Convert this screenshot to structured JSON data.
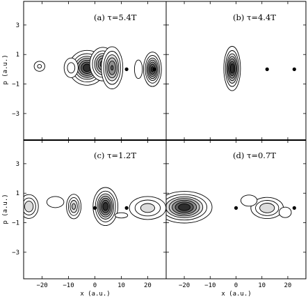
{
  "chart_data": {
    "type": "contour",
    "layout": "2x2 panels sharing axes",
    "xlabel": "x (a.u.)",
    "ylabel": "p (a.u.)",
    "xlim": [
      -27,
      27
    ],
    "ylim": [
      -4.8,
      4.6
    ],
    "xticks": [
      -20,
      -10,
      0,
      10,
      20
    ],
    "yticks": [
      -3,
      -1,
      1,
      3
    ],
    "panels": [
      {
        "id": "a",
        "label": "(a) τ=5.4T",
        "dots": [
          [
            12,
            0
          ],
          [
            22.5,
            0
          ]
        ],
        "blobs": [
          {
            "x": -3,
            "p": 0.1,
            "sx": 3.2,
            "sp": 0.55,
            "amp": 1.0
          },
          {
            "x": 3,
            "p": 0.35,
            "sx": 2.4,
            "sp": 0.55,
            "amp": 0.85
          },
          {
            "x": 6.5,
            "p": 0.1,
            "sx": 2.0,
            "sp": 0.7,
            "amp": 0.8
          },
          {
            "x": -9,
            "p": 0.1,
            "sx": 1.8,
            "sp": 0.45,
            "amp": 0.3
          },
          {
            "x": 21.8,
            "p": 0,
            "sx": 1.6,
            "sp": 0.55,
            "amp": 0.95
          },
          {
            "x": 16.5,
            "p": 0,
            "sx": 1.2,
            "sp": 0.5,
            "amp": 0.22
          },
          {
            "x": -21,
            "p": 0.2,
            "sx": 1.5,
            "sp": 0.25,
            "amp": 0.25
          }
        ]
      },
      {
        "id": "b",
        "label": "(b) τ=4.4T",
        "dots": [
          [
            12,
            0
          ],
          [
            22.5,
            0
          ]
        ],
        "blobs": [
          {
            "x": -1.5,
            "p": 0.05,
            "sx": 1.5,
            "sp": 0.7,
            "amp": 1.0
          }
        ]
      },
      {
        "id": "c",
        "label": "(c) τ=1.2T",
        "dots": [
          [
            0,
            0
          ],
          [
            12,
            0
          ]
        ],
        "blobs": [
          {
            "x": 4,
            "p": 0.1,
            "sx": 2.2,
            "sp": 0.6,
            "amp": 1.0
          },
          {
            "x": -8,
            "p": 0.1,
            "sx": 1.5,
            "sp": 0.45,
            "amp": 0.55
          },
          {
            "x": -25,
            "p": 0.1,
            "sx": 2.0,
            "sp": 0.45,
            "amp": 0.5
          },
          {
            "x": 20,
            "p": 0,
            "sx": 4.0,
            "sp": 0.45,
            "amp": 0.45
          },
          {
            "x": -15,
            "p": 0.4,
            "sx": 3.0,
            "sp": 0.35,
            "amp": 0.18
          },
          {
            "x": 10,
            "p": -0.5,
            "sx": 4.0,
            "sp": 0.3,
            "amp": 0.12
          }
        ]
      },
      {
        "id": "d",
        "label": "(d) τ=0.7T",
        "dots": [
          [
            0,
            0
          ],
          [
            22.5,
            0
          ]
        ],
        "blobs": [
          {
            "x": -20,
            "p": 0.05,
            "sx": 5.0,
            "sp": 0.5,
            "amp": 1.0
          },
          {
            "x": 12,
            "p": 0,
            "sx": 3.5,
            "sp": 0.4,
            "amp": 0.5
          },
          {
            "x": 5,
            "p": 0.5,
            "sx": 2.5,
            "sp": 0.3,
            "amp": 0.22
          },
          {
            "x": 19,
            "p": -0.3,
            "sx": 2.0,
            "sp": 0.3,
            "amp": 0.2
          }
        ]
      }
    ]
  }
}
